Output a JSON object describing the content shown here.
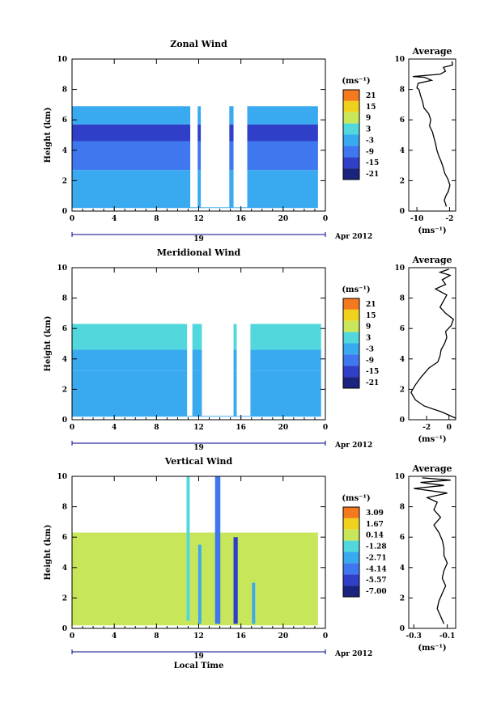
{
  "chart_data": [
    {
      "type": "heatmap",
      "title": "Zonal Wind",
      "ylabel": "Height (km)",
      "xlim": [
        0,
        24
      ],
      "ylim": [
        0,
        10
      ],
      "x_ticks": [
        "0",
        "4",
        "8",
        "12",
        "16",
        "20",
        "0"
      ],
      "y_ticks": [
        "0",
        "2",
        "4",
        "6",
        "8",
        "10"
      ],
      "date_bar": {
        "day": "19",
        "month_year": "Apr 2012"
      },
      "colorbar": {
        "unit": "(ms⁻¹)",
        "ticks": [
          "21",
          "15",
          "9",
          "3",
          "-3",
          "-9",
          "-15",
          "-21"
        ],
        "min": -24,
        "max": 24
      },
      "field": {
        "cloud_top_km": 5.5,
        "gap_hours": [
          11.2,
          11.9,
          12.2,
          14.9,
          15.3,
          16.6
        ],
        "data_end_hour": 23.3,
        "regions": [
          {
            "z": [
              0.2,
              2.7
            ],
            "value": -4
          },
          {
            "z": [
              2.7,
              4.6
            ],
            "value": -9
          },
          {
            "z": [
              4.6,
              5.7
            ],
            "value": -13
          },
          {
            "z": [
              5.7,
              6.9
            ],
            "value": -6
          }
        ]
      },
      "average": {
        "title": "Average",
        "xlabel": "(ms⁻¹)",
        "x_ticks": [
          "-10",
          "-2"
        ],
        "xlim": [
          -12,
          -0.5
        ],
        "ylim": [
          0,
          10
        ],
        "y_ticks": [
          "0",
          "2",
          "4",
          "6",
          "8",
          "10"
        ],
        "profile": [
          [
            -2.8,
            0.3
          ],
          [
            -3.0,
            0.5
          ],
          [
            -3.3,
            0.7
          ],
          [
            -2.9,
            1.0
          ],
          [
            -2.3,
            1.3
          ],
          [
            -1.9,
            1.7
          ],
          [
            -2.4,
            2.1
          ],
          [
            -3.2,
            2.5
          ],
          [
            -3.6,
            2.9
          ],
          [
            -4.1,
            3.3
          ],
          [
            -4.6,
            3.6
          ],
          [
            -5.1,
            4.0
          ],
          [
            -5.4,
            4.4
          ],
          [
            -5.8,
            4.8
          ],
          [
            -6.2,
            5.2
          ],
          [
            -6.9,
            5.6
          ],
          [
            -6.6,
            6.0
          ],
          [
            -7.1,
            6.4
          ],
          [
            -8.3,
            6.8
          ],
          [
            -8.6,
            7.2
          ],
          [
            -9.1,
            7.6
          ],
          [
            -9.5,
            8.0
          ],
          [
            -10.0,
            8.1
          ],
          [
            -9.7,
            8.4
          ],
          [
            -6.4,
            8.6
          ],
          [
            -8.1,
            8.8
          ],
          [
            -11.0,
            8.85
          ],
          [
            -4.3,
            9.0
          ],
          [
            -3.0,
            9.2
          ],
          [
            -3.5,
            9.45
          ],
          [
            -1.3,
            9.6
          ],
          [
            -1.4,
            9.85
          ]
        ]
      }
    },
    {
      "type": "heatmap",
      "title": "Meridional Wind",
      "ylabel": "Height (km)",
      "xlim": [
        0,
        24
      ],
      "ylim": [
        0,
        10
      ],
      "x_ticks": [
        "0",
        "4",
        "8",
        "12",
        "16",
        "20",
        "0"
      ],
      "y_ticks": [
        "0",
        "2",
        "4",
        "6",
        "8",
        "10"
      ],
      "date_bar": {
        "day": "19",
        "month_year": "Apr 2012"
      },
      "colorbar": {
        "unit": "(ms⁻¹)",
        "ticks": [
          "21",
          "15",
          "9",
          "3",
          "-3",
          "-9",
          "-15",
          "-21"
        ],
        "min": -24,
        "max": 24
      },
      "field": {
        "cloud_top_km": 6.1,
        "gap_hours": [
          10.9,
          11.4,
          12.3,
          15.3,
          15.6,
          16.9
        ],
        "data_end_hour": 23.6,
        "regions": [
          {
            "z": [
              0.2,
              3.2
            ],
            "value": -6
          },
          {
            "z": [
              3.2,
              4.6
            ],
            "value": -3
          },
          {
            "z": [
              4.6,
              6.3
            ],
            "value": 0
          }
        ]
      },
      "average": {
        "title": "Average",
        "xlabel": "(ms⁻¹)",
        "x_ticks": [
          "-2",
          "0"
        ],
        "xlim": [
          -3.6,
          0.6
        ],
        "ylim": [
          0,
          10
        ],
        "y_ticks": [
          "0",
          "2",
          "4",
          "6",
          "8",
          "10"
        ],
        "profile": [
          [
            0.6,
            0.1
          ],
          [
            -0.6,
            0.5
          ],
          [
            -2.2,
            0.9
          ],
          [
            -3.0,
            1.3
          ],
          [
            -3.4,
            1.8
          ],
          [
            -3.0,
            2.3
          ],
          [
            -2.5,
            2.8
          ],
          [
            -1.8,
            3.4
          ],
          [
            -1.0,
            3.8
          ],
          [
            -0.8,
            4.2
          ],
          [
            -0.7,
            4.6
          ],
          [
            -0.4,
            5.0
          ],
          [
            -0.2,
            5.4
          ],
          [
            -0.3,
            5.8
          ],
          [
            0.2,
            6.2
          ],
          [
            0.4,
            6.6
          ],
          [
            -0.3,
            7.0
          ],
          [
            -0.8,
            7.4
          ],
          [
            -0.5,
            7.8
          ],
          [
            -0.2,
            8.2
          ],
          [
            -1.2,
            8.6
          ],
          [
            -0.3,
            8.9
          ],
          [
            -0.6,
            9.2
          ],
          [
            0.1,
            9.5
          ],
          [
            -0.8,
            9.7
          ],
          [
            0.0,
            9.9
          ]
        ]
      }
    },
    {
      "type": "heatmap",
      "title": "Vertical Wind",
      "ylabel": "Height (km)",
      "xlabel": "Local Time",
      "xlim": [
        0,
        24
      ],
      "ylim": [
        0,
        10
      ],
      "x_ticks": [
        "0",
        "4",
        "8",
        "12",
        "16",
        "20",
        "0"
      ],
      "y_ticks": [
        "0",
        "2",
        "4",
        "6",
        "8",
        "10"
      ],
      "date_bar": {
        "day": "19",
        "month_year": "Apr 2012"
      },
      "colorbar": {
        "unit": "(ms⁻¹)",
        "ticks": [
          "3.09",
          "1.67",
          "0.14",
          "-1.28",
          "-2.71",
          "-4.14",
          "-5.57",
          "-7.00"
        ],
        "min": -7.7,
        "max": 3.8
      },
      "field": {
        "cloud_top_km": 6.3,
        "gap_hours": [],
        "data_end_hour": 23.3,
        "regions": [
          {
            "z": [
              0.2,
              6.3
            ],
            "value": 0.3
          }
        ],
        "streaks": [
          {
            "t": 11.0,
            "w": 0.3,
            "z": [
              0.5,
              10
            ],
            "value": -1.5
          },
          {
            "t": 13.8,
            "w": 0.5,
            "z": [
              0.3,
              10
            ],
            "value": -4.5
          },
          {
            "t": 15.5,
            "w": 0.4,
            "z": [
              0.3,
              6.0
            ],
            "value": -5.0
          },
          {
            "t": 12.1,
            "w": 0.3,
            "z": [
              0.3,
              5.5
            ],
            "value": -2.3
          },
          {
            "t": 17.2,
            "w": 0.3,
            "z": [
              0.3,
              3.0
            ],
            "value": -2.0
          }
        ]
      },
      "average": {
        "title": "Average",
        "xlabel": "(ms⁻¹)",
        "x_ticks": [
          "-0.3",
          "-0.1"
        ],
        "xlim": [
          -0.33,
          -0.05
        ],
        "ylim": [
          0,
          10
        ],
        "y_ticks": [
          "0",
          "2",
          "4",
          "6",
          "8",
          "10"
        ],
        "profile": [
          [
            -0.12,
            0.3
          ],
          [
            -0.14,
            0.8
          ],
          [
            -0.16,
            1.3
          ],
          [
            -0.15,
            1.8
          ],
          [
            -0.13,
            2.3
          ],
          [
            -0.11,
            2.8
          ],
          [
            -0.13,
            3.3
          ],
          [
            -0.12,
            3.8
          ],
          [
            -0.1,
            4.3
          ],
          [
            -0.12,
            4.8
          ],
          [
            -0.12,
            5.3
          ],
          [
            -0.13,
            5.8
          ],
          [
            -0.15,
            6.3
          ],
          [
            -0.18,
            6.8
          ],
          [
            -0.14,
            7.3
          ],
          [
            -0.18,
            7.8
          ],
          [
            -0.16,
            8.3
          ],
          [
            -0.22,
            8.6
          ],
          [
            -0.1,
            8.9
          ],
          [
            -0.3,
            9.2
          ],
          [
            -0.12,
            9.4
          ],
          [
            -0.26,
            9.6
          ],
          [
            -0.08,
            9.75
          ],
          [
            -0.25,
            9.9
          ]
        ]
      }
    }
  ]
}
